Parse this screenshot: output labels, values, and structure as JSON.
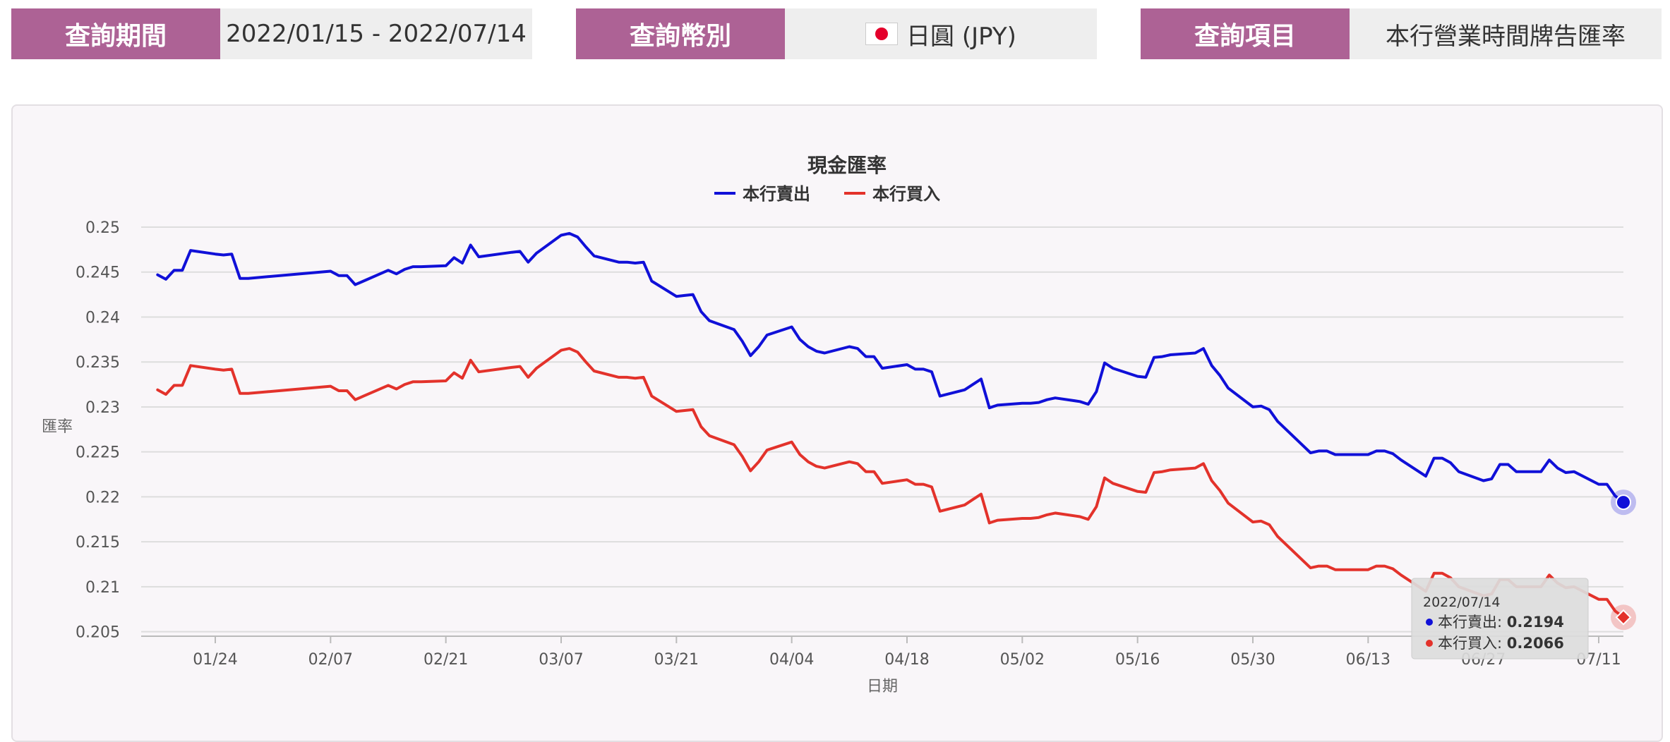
{
  "filters": [
    {
      "label": "查詢期間",
      "value": "2022/01/15 - 2022/07/14"
    },
    {
      "label": "查詢幣別",
      "value": "日圓 (JPY)",
      "flag_icon": "japan-flag-icon"
    },
    {
      "label": "查詢項目",
      "value": "本行營業時間牌告匯率"
    }
  ],
  "colors": {
    "label_bg": "#ad6295",
    "sell_line": "#1010d8",
    "buy_line": "#e3322b"
  },
  "chart_data": {
    "type": "line",
    "title": "現金匯率",
    "xlabel": "日期",
    "ylabel": "匯率",
    "x_start": "2022/01/15",
    "x_end": "2022/07/14",
    "x_ticks": [
      "01/24",
      "02/07",
      "02/21",
      "03/07",
      "03/21",
      "04/04",
      "04/18",
      "05/02",
      "05/16",
      "05/30",
      "06/13",
      "06/27",
      "07/11"
    ],
    "y_ticks": [
      "0.205",
      "0.21",
      "0.215",
      "0.22",
      "0.225",
      "0.23",
      "0.235",
      "0.24",
      "0.245",
      "0.25"
    ],
    "ylim": [
      0.2045,
      0.25
    ],
    "grid": true,
    "legend": "top-center",
    "series": [
      {
        "name": "本行賣出",
        "x": [
          "2022/01/17",
          "2022/01/18",
          "2022/01/19",
          "2022/01/20",
          "2022/01/21",
          "2022/01/24",
          "2022/01/25",
          "2022/01/26",
          "2022/01/27",
          "2022/01/28",
          "2022/02/07",
          "2022/02/08",
          "2022/02/09",
          "2022/02/10",
          "2022/02/11",
          "2022/02/14",
          "2022/02/15",
          "2022/02/16",
          "2022/02/17",
          "2022/02/18",
          "2022/02/21",
          "2022/02/22",
          "2022/02/23",
          "2022/02/24",
          "2022/02/25",
          "2022/03/01",
          "2022/03/02",
          "2022/03/03",
          "2022/03/04",
          "2022/03/07",
          "2022/03/08",
          "2022/03/09",
          "2022/03/10",
          "2022/03/11",
          "2022/03/14",
          "2022/03/15",
          "2022/03/16",
          "2022/03/17",
          "2022/03/18",
          "2022/03/21",
          "2022/03/22",
          "2022/03/23",
          "2022/03/24",
          "2022/03/25",
          "2022/03/28",
          "2022/03/29",
          "2022/03/30",
          "2022/03/31",
          "2022/04/01",
          "2022/04/04",
          "2022/04/05",
          "2022/04/06",
          "2022/04/07",
          "2022/04/08",
          "2022/04/11",
          "2022/04/12",
          "2022/04/13",
          "2022/04/14",
          "2022/04/15",
          "2022/04/18",
          "2022/04/19",
          "2022/04/20",
          "2022/04/21",
          "2022/04/22",
          "2022/04/25",
          "2022/04/26",
          "2022/04/27",
          "2022/04/28",
          "2022/04/29",
          "2022/05/02",
          "2022/05/03",
          "2022/05/04",
          "2022/05/05",
          "2022/05/06",
          "2022/05/09",
          "2022/05/10",
          "2022/05/11",
          "2022/05/12",
          "2022/05/13",
          "2022/05/16",
          "2022/05/17",
          "2022/05/18",
          "2022/05/19",
          "2022/05/20",
          "2022/05/23",
          "2022/05/24",
          "2022/05/25",
          "2022/05/26",
          "2022/05/27",
          "2022/05/30",
          "2022/05/31",
          "2022/06/01",
          "2022/06/02",
          "2022/06/06",
          "2022/06/07",
          "2022/06/08",
          "2022/06/09",
          "2022/06/10",
          "2022/06/13",
          "2022/06/14",
          "2022/06/15",
          "2022/06/16",
          "2022/06/17",
          "2022/06/20",
          "2022/06/21",
          "2022/06/22",
          "2022/06/23",
          "2022/06/24",
          "2022/06/27",
          "2022/06/28",
          "2022/06/29",
          "2022/06/30",
          "2022/07/01",
          "2022/07/04",
          "2022/07/05",
          "2022/07/06",
          "2022/07/07",
          "2022/07/08",
          "2022/07/11",
          "2022/07/12",
          "2022/07/13",
          "2022/07/14"
        ],
        "values": [
          0.2447,
          0.2442,
          0.2452,
          0.2452,
          0.2474,
          0.247,
          0.2469,
          0.247,
          0.2443,
          0.2443,
          0.2451,
          0.2446,
          0.2446,
          0.2436,
          0.244,
          0.2452,
          0.2448,
          0.2453,
          0.2456,
          0.2456,
          0.2457,
          0.2466,
          0.246,
          0.248,
          0.2467,
          0.2472,
          0.2473,
          0.2461,
          0.2471,
          0.2491,
          0.2493,
          0.2489,
          0.2478,
          0.2468,
          0.2461,
          0.2461,
          0.246,
          0.2461,
          0.244,
          0.2423,
          0.2424,
          0.2425,
          0.2406,
          0.2396,
          0.2386,
          0.2373,
          0.2357,
          0.2367,
          0.238,
          0.2389,
          0.2375,
          0.2367,
          0.2362,
          0.236,
          0.2367,
          0.2365,
          0.2356,
          0.2356,
          0.2343,
          0.2347,
          0.2342,
          0.2342,
          0.2339,
          0.2312,
          0.2319,
          0.2325,
          0.2331,
          0.2299,
          0.2302,
          0.2304,
          0.2304,
          0.2305,
          0.2308,
          0.231,
          0.2306,
          0.2303,
          0.2317,
          0.2349,
          0.2343,
          0.2334,
          0.2333,
          0.2355,
          0.2356,
          0.2358,
          0.236,
          0.2365,
          0.2346,
          0.2335,
          0.2321,
          0.23,
          0.2301,
          0.2297,
          0.2284,
          0.2249,
          0.2251,
          0.2251,
          0.2247,
          0.2247,
          0.2247,
          0.2251,
          0.2251,
          0.2248,
          0.2241,
          0.2223,
          0.2243,
          0.2243,
          0.2238,
          0.2228,
          0.2218,
          0.222,
          0.2236,
          0.2236,
          0.2228,
          0.2228,
          0.2241,
          0.2232,
          0.2227,
          0.2228,
          0.2214,
          0.2214,
          0.2201,
          0.2194
        ]
      },
      {
        "name": "本行買入",
        "x": [
          "2022/01/17",
          "2022/01/18",
          "2022/01/19",
          "2022/01/20",
          "2022/01/21",
          "2022/01/24",
          "2022/01/25",
          "2022/01/26",
          "2022/01/27",
          "2022/01/28",
          "2022/02/07",
          "2022/02/08",
          "2022/02/09",
          "2022/02/10",
          "2022/02/11",
          "2022/02/14",
          "2022/02/15",
          "2022/02/16",
          "2022/02/17",
          "2022/02/18",
          "2022/02/21",
          "2022/02/22",
          "2022/02/23",
          "2022/02/24",
          "2022/02/25",
          "2022/03/01",
          "2022/03/02",
          "2022/03/03",
          "2022/03/04",
          "2022/03/07",
          "2022/03/08",
          "2022/03/09",
          "2022/03/10",
          "2022/03/11",
          "2022/03/14",
          "2022/03/15",
          "2022/03/16",
          "2022/03/17",
          "2022/03/18",
          "2022/03/21",
          "2022/03/22",
          "2022/03/23",
          "2022/03/24",
          "2022/03/25",
          "2022/03/28",
          "2022/03/29",
          "2022/03/30",
          "2022/03/31",
          "2022/04/01",
          "2022/04/04",
          "2022/04/05",
          "2022/04/06",
          "2022/04/07",
          "2022/04/08",
          "2022/04/11",
          "2022/04/12",
          "2022/04/13",
          "2022/04/14",
          "2022/04/15",
          "2022/04/18",
          "2022/04/19",
          "2022/04/20",
          "2022/04/21",
          "2022/04/22",
          "2022/04/25",
          "2022/04/26",
          "2022/04/27",
          "2022/04/28",
          "2022/04/29",
          "2022/05/02",
          "2022/05/03",
          "2022/05/04",
          "2022/05/05",
          "2022/05/06",
          "2022/05/09",
          "2022/05/10",
          "2022/05/11",
          "2022/05/12",
          "2022/05/13",
          "2022/05/16",
          "2022/05/17",
          "2022/05/18",
          "2022/05/19",
          "2022/05/20",
          "2022/05/23",
          "2022/05/24",
          "2022/05/25",
          "2022/05/26",
          "2022/05/27",
          "2022/05/30",
          "2022/05/31",
          "2022/06/01",
          "2022/06/02",
          "2022/06/06",
          "2022/06/07",
          "2022/06/08",
          "2022/06/09",
          "2022/06/10",
          "2022/06/13",
          "2022/06/14",
          "2022/06/15",
          "2022/06/16",
          "2022/06/17",
          "2022/06/20",
          "2022/06/21",
          "2022/06/22",
          "2022/06/23",
          "2022/06/24",
          "2022/06/27",
          "2022/06/28",
          "2022/06/29",
          "2022/06/30",
          "2022/07/01",
          "2022/07/04",
          "2022/07/05",
          "2022/07/06",
          "2022/07/07",
          "2022/07/08",
          "2022/07/11",
          "2022/07/12",
          "2022/07/13",
          "2022/07/14"
        ],
        "values": [
          0.2319,
          0.2314,
          0.2324,
          0.2324,
          0.2346,
          0.2342,
          0.2341,
          0.2342,
          0.2315,
          0.2315,
          0.2323,
          0.2318,
          0.2318,
          0.2308,
          0.2312,
          0.2324,
          0.232,
          0.2325,
          0.2328,
          0.2328,
          0.2329,
          0.2338,
          0.2332,
          0.2352,
          0.2339,
          0.2344,
          0.2345,
          0.2333,
          0.2343,
          0.2363,
          0.2365,
          0.2361,
          0.235,
          0.234,
          0.2333,
          0.2333,
          0.2332,
          0.2333,
          0.2312,
          0.2295,
          0.2296,
          0.2297,
          0.2278,
          0.2268,
          0.2258,
          0.2245,
          0.2229,
          0.2239,
          0.2252,
          0.2261,
          0.2247,
          0.2239,
          0.2234,
          0.2232,
          0.2239,
          0.2237,
          0.2228,
          0.2228,
          0.2215,
          0.2219,
          0.2214,
          0.2214,
          0.2211,
          0.2184,
          0.2191,
          0.2197,
          0.2203,
          0.2171,
          0.2174,
          0.2176,
          0.2176,
          0.2177,
          0.218,
          0.2182,
          0.2178,
          0.2175,
          0.2189,
          0.2221,
          0.2215,
          0.2206,
          0.2205,
          0.2227,
          0.2228,
          0.223,
          0.2232,
          0.2237,
          0.2218,
          0.2207,
          0.2193,
          0.2172,
          0.2173,
          0.2169,
          0.2156,
          0.2121,
          0.2123,
          0.2123,
          0.2119,
          0.2119,
          0.2119,
          0.2123,
          0.2123,
          0.212,
          0.2113,
          0.2095,
          0.2115,
          0.2115,
          0.211,
          0.21,
          0.209,
          0.2092,
          0.2108,
          0.2108,
          0.21,
          0.21,
          0.2113,
          0.2104,
          0.2099,
          0.21,
          0.2086,
          0.2086,
          0.2073,
          0.2066
        ]
      }
    ],
    "tooltip": {
      "date": "2022/07/14",
      "rows": [
        {
          "label": "本行賣出: ",
          "value": "0.2194"
        },
        {
          "label": "本行買入: ",
          "value": "0.2066"
        }
      ]
    }
  }
}
